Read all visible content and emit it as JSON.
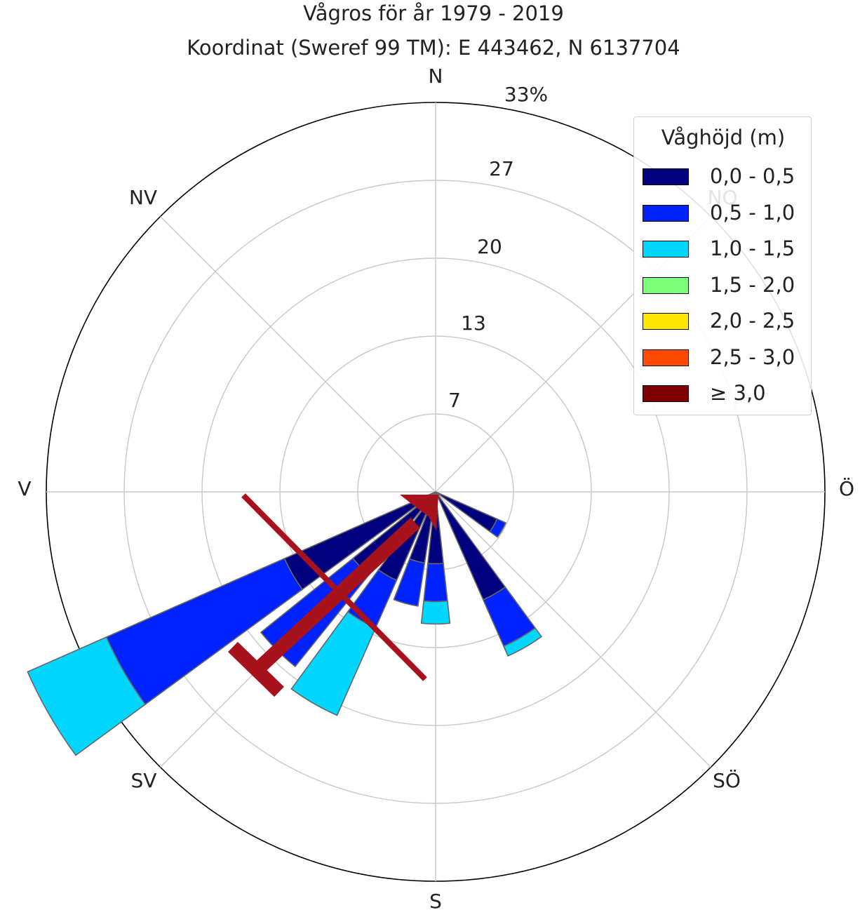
{
  "chart_data": {
    "type": "windrose",
    "title": "Vågros för år 1979 - 2019",
    "subtitle": "Koordinat (Sweref 99 TM): E 443462, N 6137704",
    "directions": [
      "N",
      "NO",
      "Ö",
      "SÖ",
      "S",
      "SV",
      "V",
      "NV"
    ],
    "radial_ticks": [
      "7",
      "13",
      "20",
      "27",
      "33%"
    ],
    "rmax": 33,
    "legend": {
      "title": "Våghöjd (m)",
      "placement": "top-right",
      "bins": [
        "0,0 - 0,5",
        "0,5 - 1,0",
        "1,0 - 1,5",
        "1,5 - 2,0",
        "2,0 - 2,5",
        "2,5 - 3,0",
        "≥ 3,0"
      ],
      "colors": [
        "#00007f",
        "#0022ff",
        "#00d6ff",
        "#7cff79",
        "#ffe600",
        "#ff4a00",
        "#7f0000"
      ]
    },
    "sectors": [
      {
        "direction_deg": 120,
        "values": [
          5.7,
          0.8,
          0,
          0,
          0,
          0,
          0
        ]
      },
      {
        "direction_deg": 135,
        "values": [
          0.4,
          0,
          0,
          0,
          0,
          0,
          0
        ]
      },
      {
        "direction_deg": 150,
        "values": [
          10.0,
          4.3,
          0.9,
          0,
          0,
          0,
          0
        ]
      },
      {
        "direction_deg": 165,
        "values": [
          0.4,
          0,
          0,
          0,
          0,
          0,
          0
        ]
      },
      {
        "direction_deg": 180,
        "values": [
          6.1,
          3.2,
          1.9,
          0,
          0,
          0,
          0
        ]
      },
      {
        "direction_deg": 195,
        "values": [
          6.1,
          3.7,
          0,
          0,
          0,
          0,
          0
        ]
      },
      {
        "direction_deg": 210,
        "values": [
          8.2,
          4.4,
          8.1,
          0,
          0,
          0,
          0
        ]
      },
      {
        "direction_deg": 225,
        "values": [
          9.0,
          10.0,
          0,
          0,
          0,
          0,
          0
        ]
      },
      {
        "direction_deg": 240,
        "values": [
          14.0,
          16.5,
          7.3,
          0,
          0,
          0,
          0
        ]
      }
    ],
    "annotation": {
      "arrow_toward": "NO",
      "arrow_color": "#a8121c"
    }
  }
}
